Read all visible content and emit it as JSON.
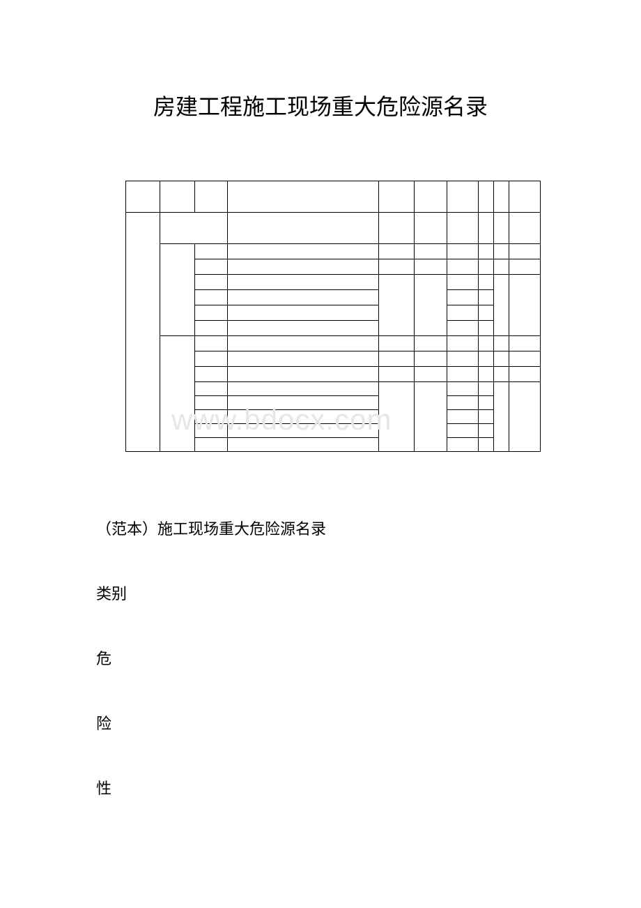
{
  "title": "房建工程施工现场重大危险源名录",
  "subtitle": "（范本）施工现场重大危险源名录",
  "labels": {
    "category": "类别",
    "wei": "危",
    "xian": "险",
    "xing": "性"
  },
  "watermark": "www.bdocx.com",
  "table": {
    "border_color": "#000000",
    "background_color": "#ffffff"
  }
}
